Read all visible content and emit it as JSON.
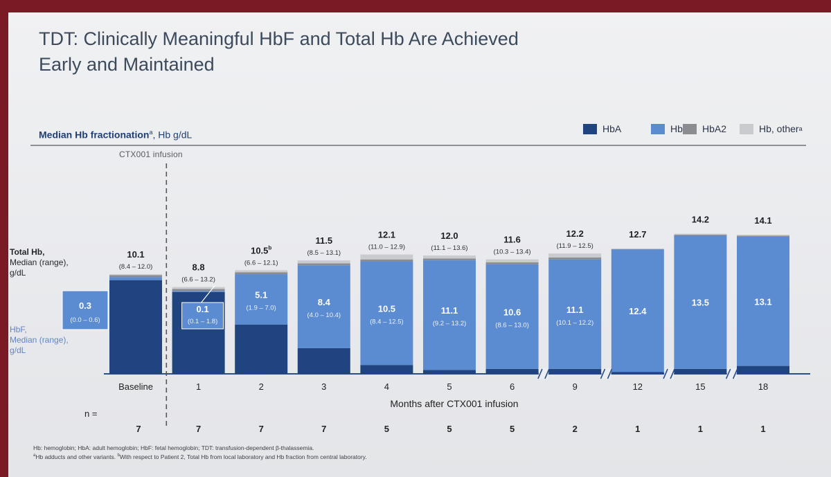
{
  "title_lines": [
    "TDT: Clinically Meaningful HbF and Total Hb Are Achieved",
    "Early and Maintained"
  ],
  "subtitle": {
    "bold": "Median Hb fractionation",
    "sup": "a",
    "rest": ", Hb g/dL"
  },
  "legend": [
    {
      "label": "HbA",
      "sup": "",
      "color": "#1f447f"
    },
    {
      "label": "HbF",
      "sup": "",
      "color": "#5b8bd1"
    },
    {
      "label": "HbA2",
      "sup": "",
      "color": "#8a8c90"
    },
    {
      "label": "Hb, other",
      "sup": "a",
      "color": "#c9cbcf"
    }
  ],
  "infusion_label": "CTX001 infusion",
  "total_hb_label": {
    "line1": "Total Hb,",
    "line2": "Median (range),",
    "line3": "g/dL"
  },
  "hbf_label": {
    "line1": "HbF,",
    "line2": "Median (range),",
    "line3": "g/dL"
  },
  "n_label": "n =",
  "footnotes": {
    "line1": "Hb: hemoglobin; HbA: adult hemoglobin; HbF: fetal hemoglobin; TDT: transfusion-dependent β-thalassemia.",
    "line2_sup_a": "a",
    "line2_a": "Hb adducts and other variants. ",
    "line2_sup_b": "b",
    "line2_b": "With respect to Patient 2, Total Hb from local laboratory and Hb fraction from central laboratory."
  },
  "chart_data": {
    "type": "bar",
    "stacked": true,
    "title": "Median Hb fractionation, Hb g/dL",
    "xlabel": "Months after CTX001 infusion",
    "ylabel": "Hb g/dL",
    "ylim": [
      0,
      15
    ],
    "categories": [
      "Baseline",
      "1",
      "2",
      "3",
      "4",
      "5",
      "6",
      "9",
      "12",
      "15",
      "18"
    ],
    "n": [
      "7",
      "7",
      "7",
      "7",
      "5",
      "5",
      "5",
      "2",
      "1",
      "1",
      "1"
    ],
    "total_hb": [
      10.1,
      8.8,
      10.5,
      11.5,
      12.1,
      12.0,
      11.6,
      12.2,
      12.7,
      14.2,
      14.1
    ],
    "total_hb_text": [
      "10.1",
      "8.8",
      "10.5",
      "11.5",
      "12.1",
      "12.0",
      "11.6",
      "12.2",
      "12.7",
      "14.2",
      "14.1"
    ],
    "total_hb_sup": [
      "",
      "",
      "b",
      "",
      "",
      "",
      "",
      "",
      "",
      "",
      ""
    ],
    "total_hb_range": [
      "(8.4 – 12.0)",
      "(6.6 – 13.2)",
      "(6.6 – 12.1)",
      "(8.5 – 13.1)",
      "(11.0 – 12.9)",
      "(11.1 – 13.6)",
      "(10.3 – 13.4)",
      "(11.9 – 12.5)",
      "",
      "",
      ""
    ],
    "hbf": [
      0.3,
      0.1,
      5.1,
      8.4,
      10.5,
      11.1,
      10.6,
      11.1,
      12.4,
      13.5,
      13.1
    ],
    "hbf_text": [
      "0.3",
      "0.1",
      "5.1",
      "8.4",
      "10.5",
      "11.1",
      "10.6",
      "11.1",
      "12.4",
      "13.5",
      "13.1"
    ],
    "hbf_range": [
      "(0.0 – 0.6)",
      "(0.1 – 1.8)",
      "(1.9 – 7.0)",
      "(4.0 – 10.4)",
      "(8.4 – 12.5)",
      "(9.2 – 13.2)",
      "(8.6 – 13.0)",
      "(10.1 – 12.2)",
      "",
      "",
      ""
    ],
    "series": [
      {
        "name": "HbA",
        "values": [
          9.5,
          8.3,
          5.0,
          2.6,
          0.9,
          0.4,
          0.5,
          0.5,
          0.2,
          0.5,
          0.8
        ]
      },
      {
        "name": "HbF",
        "values": [
          0.3,
          0.1,
          5.1,
          8.4,
          10.5,
          11.1,
          10.6,
          11.1,
          12.4,
          13.5,
          13.1
        ]
      },
      {
        "name": "HbA2",
        "values": [
          0.2,
          0.2,
          0.2,
          0.2,
          0.2,
          0.2,
          0.2,
          0.2,
          0.05,
          0.1,
          0.1
        ]
      },
      {
        "name": "Hb, other",
        "values": [
          0.1,
          0.2,
          0.2,
          0.3,
          0.5,
          0.3,
          0.3,
          0.4,
          0.05,
          0.1,
          0.1
        ]
      }
    ],
    "axis_breaks_after": [
      "6",
      "9",
      "12",
      "15"
    ],
    "infusion_marker_between": [
      "Baseline",
      "1"
    ]
  }
}
